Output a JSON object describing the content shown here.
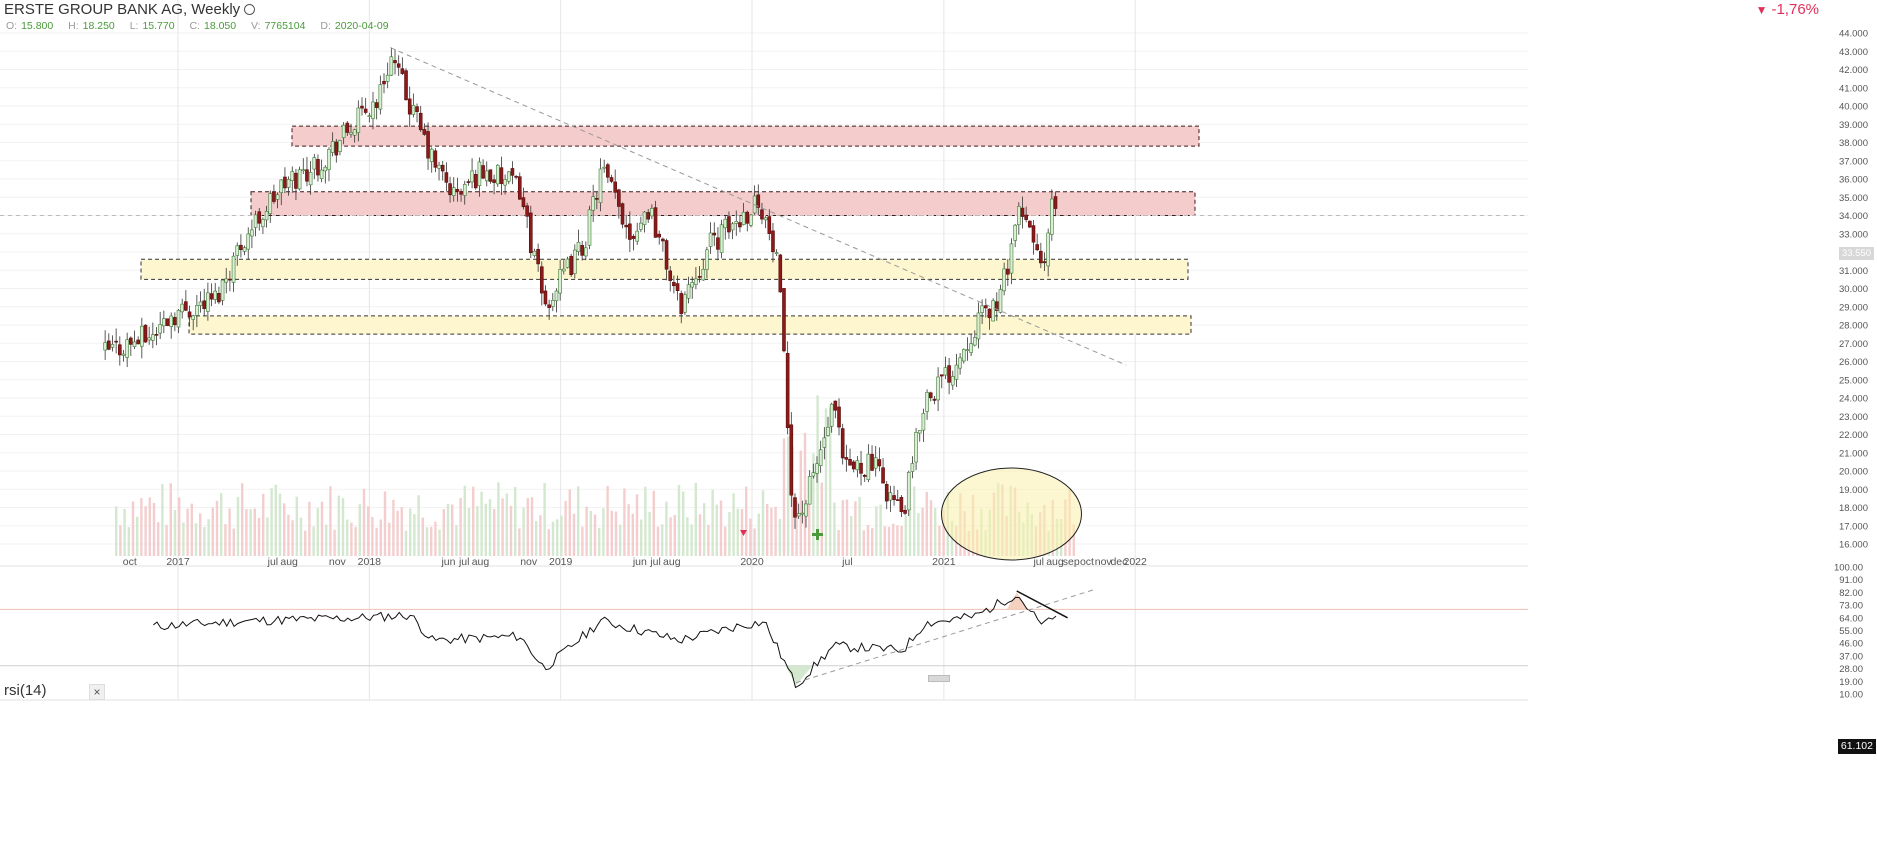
{
  "header": {
    "title": "ERSTE GROUP BANK AG, Weekly",
    "ohlc": [
      {
        "k": "O:",
        "v": "15.800"
      },
      {
        "k": "H:",
        "v": "18.250"
      },
      {
        "k": "L:",
        "v": "15.770"
      },
      {
        "k": "C:",
        "v": "18.050"
      },
      {
        "k": "V:",
        "v": "7765104"
      },
      {
        "k": "D:",
        "v": "2020-04-09"
      }
    ],
    "change": "-1,76%",
    "change_icon": "down-triangle-icon"
  },
  "current_price_label": "33.550",
  "rsi_panel": {
    "title": "rsi(14)",
    "close_icon": "close-icon",
    "close_glyph": "×",
    "current_value": "61.102"
  },
  "colors": {
    "up": "#3f7a35",
    "down": "#8b1a1a",
    "resistance_zone": "#f4cccc",
    "support_zone": "#fdf6cf",
    "rsi_line": "#111111",
    "change_negative": "#e0305a"
  },
  "chart_data": [
    {
      "type": "candlestick",
      "title": "ERSTE GROUP BANK AG, Weekly",
      "y_axis_ticks": [
        16,
        17,
        18,
        19,
        20,
        21,
        22,
        23,
        24,
        25,
        26,
        27,
        28,
        29,
        30,
        31,
        32,
        33,
        34,
        35,
        36,
        37,
        38,
        39,
        40,
        41,
        42,
        43,
        44
      ],
      "y_range": [
        15.4,
        44.8
      ],
      "x_axis_labels": [
        "oct",
        "2017",
        "jul",
        "aug",
        "nov",
        "2018",
        "jun",
        "jul",
        "aug",
        "nov",
        "2019",
        "jun",
        "jul",
        "aug",
        "2020",
        "jul",
        "2021",
        "jul",
        "aug",
        "sep",
        "oct",
        "nov",
        "dec",
        "2022"
      ],
      "price_anchors": [
        {
          "date": "2016-08-15",
          "price": 26.5
        },
        {
          "date": "2016-11-15",
          "price": 27.5
        },
        {
          "date": "2016-12-15",
          "price": 28.5
        },
        {
          "date": "2017-03-15",
          "price": 29.5
        },
        {
          "date": "2017-05-01",
          "price": 32.5
        },
        {
          "date": "2017-07-15",
          "price": 35.5
        },
        {
          "date": "2017-10-01",
          "price": 37.0
        },
        {
          "date": "2018-01-20",
          "price": 40.5
        },
        {
          "date": "2018-02-10",
          "price": 42.8
        },
        {
          "date": "2018-03-20",
          "price": 40.0
        },
        {
          "date": "2018-05-01",
          "price": 37.0
        },
        {
          "date": "2018-06-15",
          "price": 35.0
        },
        {
          "date": "2018-08-01",
          "price": 36.5
        },
        {
          "date": "2018-10-15",
          "price": 35.5
        },
        {
          "date": "2018-12-01",
          "price": 29.0
        },
        {
          "date": "2019-02-15",
          "price": 32.5
        },
        {
          "date": "2019-03-20",
          "price": 36.5
        },
        {
          "date": "2019-05-15",
          "price": 33.0
        },
        {
          "date": "2019-06-20",
          "price": 34.5
        },
        {
          "date": "2019-08-15",
          "price": 29.0
        },
        {
          "date": "2019-10-15",
          "price": 32.5
        },
        {
          "date": "2019-12-15",
          "price": 34.0
        },
        {
          "date": "2020-01-15",
          "price": 35.0
        },
        {
          "date": "2020-02-20",
          "price": 31.0
        },
        {
          "date": "2020-03-20",
          "price": 17.5
        },
        {
          "date": "2020-04-09",
          "price": 18.0
        },
        {
          "date": "2020-06-05",
          "price": 23.5
        },
        {
          "date": "2020-06-25",
          "price": 20.0
        },
        {
          "date": "2020-08-15",
          "price": 20.5
        },
        {
          "date": "2020-10-15",
          "price": 17.5
        },
        {
          "date": "2020-11-25",
          "price": 24.0
        },
        {
          "date": "2021-01-15",
          "price": 25.5
        },
        {
          "date": "2021-03-01",
          "price": 28.0
        },
        {
          "date": "2021-04-20",
          "price": 29.5
        },
        {
          "date": "2021-05-20",
          "price": 34.0
        },
        {
          "date": "2021-06-20",
          "price": 33.0
        },
        {
          "date": "2021-07-10",
          "price": 30.5
        },
        {
          "date": "2021-07-25",
          "price": 34.5
        },
        {
          "date": "2021-08-05",
          "price": 33.55
        }
      ],
      "resistance_zones": [
        {
          "low": 37.8,
          "high": 38.9,
          "from": "2017-09-01",
          "to": "2022-01-01"
        },
        {
          "low": 34.0,
          "high": 35.3,
          "from": "2017-04-10",
          "to": "2022-01-01"
        }
      ],
      "support_zones": [
        {
          "low": 30.5,
          "high": 31.6,
          "from": "2016-10-01",
          "to": "2022-01-01"
        },
        {
          "low": 27.5,
          "high": 28.5,
          "from": "2017-01-15",
          "to": "2022-01-01"
        }
      ],
      "trendline": {
        "from": {
          "date": "2018-02-10",
          "price": 43.2
        },
        "to": {
          "date": "2021-12-15",
          "price": 25.8
        }
      },
      "horizontal_line": 34.0,
      "volume_highlight": {
        "center_date": "2021-05-10",
        "label": "ellipse"
      }
    },
    {
      "type": "line",
      "title": "rsi(14)",
      "y_axis_ticks": [
        10,
        19,
        28,
        37,
        46,
        55,
        64,
        73,
        82,
        91,
        100
      ],
      "y_range": [
        5,
        100
      ],
      "overbought": 70,
      "oversold": 30,
      "rsi_anchors": [
        {
          "date": "2016-11-15",
          "value": 58
        },
        {
          "date": "2017-06-01",
          "value": 62
        },
        {
          "date": "2017-12-15",
          "value": 64
        },
        {
          "date": "2018-03-20",
          "value": 66
        },
        {
          "date": "2018-05-01",
          "value": 48
        },
        {
          "date": "2018-10-15",
          "value": 51
        },
        {
          "date": "2018-12-01",
          "value": 28
        },
        {
          "date": "2019-03-20",
          "value": 62
        },
        {
          "date": "2019-08-15",
          "value": 48
        },
        {
          "date": "2019-12-15",
          "value": 59
        },
        {
          "date": "2020-01-25",
          "value": 61
        },
        {
          "date": "2020-03-25",
          "value": 16
        },
        {
          "date": "2020-06-05",
          "value": 44
        },
        {
          "date": "2020-10-15",
          "value": 41
        },
        {
          "date": "2020-11-25",
          "value": 60
        },
        {
          "date": "2021-03-01",
          "value": 65
        },
        {
          "date": "2021-05-20",
          "value": 81
        },
        {
          "date": "2021-07-10",
          "value": 57
        },
        {
          "date": "2021-07-25",
          "value": 66
        },
        {
          "date": "2021-08-05",
          "value": 61.1
        }
      ],
      "rising_support_line": {
        "from": {
          "date": "2020-03-25",
          "value": 18
        },
        "to": {
          "date": "2021-10-15",
          "value": 84
        }
      },
      "falling_resistance_line": {
        "from": {
          "date": "2021-05-20",
          "value": 83
        },
        "to": {
          "date": "2021-08-25",
          "value": 64
        }
      }
    }
  ]
}
